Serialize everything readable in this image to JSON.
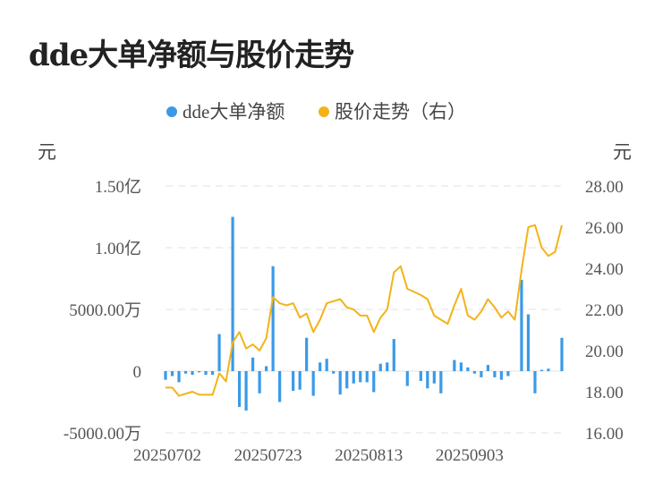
{
  "title": "dde大单净额与股价走势",
  "colors": {
    "bar": "#3a9ae8",
    "line": "#f3b318",
    "grid": "#e6e6e6"
  },
  "chart_data": {
    "type": "bar+line",
    "legend": {
      "placement": "top-center",
      "items": [
        {
          "name": "dde大单净额",
          "color": "#3a9ae8"
        },
        {
          "name": "股价走势（右）",
          "color": "#f3b318"
        }
      ]
    },
    "left_axis": {
      "unit": "元",
      "min": -5000,
      "max": 15000,
      "ticks": [
        {
          "v": 15000,
          "label": "1.50亿"
        },
        {
          "v": 10000,
          "label": "1.00亿"
        },
        {
          "v": 5000,
          "label": "5000.00万"
        },
        {
          "v": 0,
          "label": "0"
        },
        {
          "v": -5000,
          "label": "-5000.00万"
        }
      ]
    },
    "right_axis": {
      "unit": "元",
      "min": 16,
      "max": 28,
      "ticks": [
        {
          "v": 28,
          "label": "28.00"
        },
        {
          "v": 26,
          "label": "26.00"
        },
        {
          "v": 24,
          "label": "24.00"
        },
        {
          "v": 22,
          "label": "22.00"
        },
        {
          "v": 20,
          "label": "20.00"
        },
        {
          "v": 18,
          "label": "18.00"
        },
        {
          "v": 16,
          "label": "16.00"
        }
      ]
    },
    "x_tick_labels": [
      {
        "index": 0,
        "label": "20250702"
      },
      {
        "index": 15,
        "label": "20250723"
      },
      {
        "index": 30,
        "label": "20250813"
      },
      {
        "index": 45,
        "label": "20250903"
      }
    ],
    "series": [
      {
        "name": "dde大单净额",
        "kind": "bar",
        "unit": "万元",
        "values": [
          -700,
          -400,
          -900,
          -200,
          -300,
          -100,
          -300,
          -300,
          3000,
          0,
          12500,
          -2900,
          -3200,
          1100,
          -1800,
          400,
          8500,
          -2500,
          0,
          -1600,
          -1500,
          2700,
          -2000,
          700,
          1000,
          -200,
          -1900,
          -1400,
          -1000,
          -900,
          -900,
          -1700,
          600,
          700,
          2600,
          0,
          -1200,
          0,
          -800,
          -1400,
          -1000,
          -1800,
          0,
          900,
          700,
          300,
          -200,
          -500,
          500,
          -500,
          -700,
          -400,
          0,
          7400,
          4600,
          -1800,
          100,
          200,
          0,
          2700
        ]
      },
      {
        "name": "股价走势（右）",
        "kind": "line",
        "unit": "元",
        "values": [
          18.2,
          18.2,
          17.8,
          17.9,
          18.0,
          17.85,
          17.85,
          17.85,
          18.9,
          18.5,
          20.4,
          20.9,
          20.1,
          20.3,
          20.0,
          20.6,
          22.6,
          22.3,
          22.2,
          22.3,
          21.6,
          21.8,
          20.9,
          21.5,
          22.3,
          22.4,
          22.5,
          22.1,
          22.0,
          21.7,
          21.7,
          20.9,
          21.6,
          22.0,
          23.8,
          24.1,
          23.0,
          22.85,
          22.7,
          22.5,
          21.7,
          21.5,
          21.3,
          22.2,
          23.0,
          21.7,
          21.5,
          21.9,
          22.5,
          22.1,
          21.6,
          21.9,
          21.5,
          23.9,
          26.0,
          26.1,
          25.0,
          24.6,
          24.8,
          26.1
        ]
      }
    ]
  }
}
